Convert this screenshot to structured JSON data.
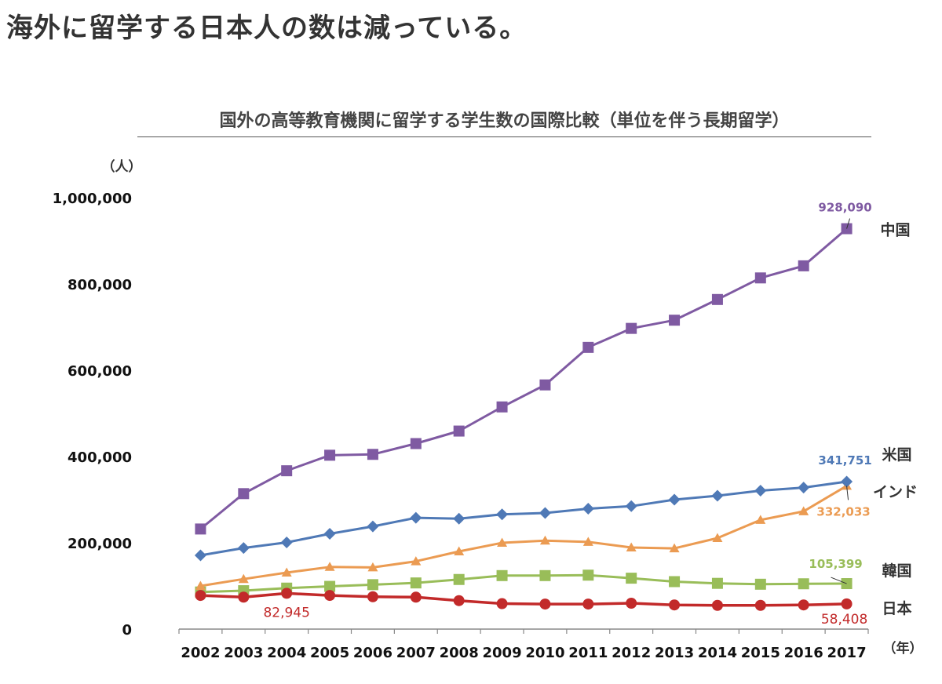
{
  "headline": "海外に留学する日本人の数は減っている。",
  "chart_data": {
    "type": "line",
    "title": "国外の高等教育機関に留学する学生数の国際比較（単位を伴う長期留学）",
    "ylabel": "（人）",
    "xlabel": "（年）",
    "ylim": [
      0,
      1000000
    ],
    "yticks": [
      0,
      200000,
      400000,
      600000,
      800000,
      1000000
    ],
    "ytick_labels": [
      "0",
      "200,000",
      "400,000",
      "600,000",
      "800,000",
      "1,000,000"
    ],
    "categories": [
      "2002",
      "2003",
      "2004",
      "2005",
      "2006",
      "2007",
      "2008",
      "2009",
      "2010",
      "2011",
      "2012",
      "2013",
      "2014",
      "2015",
      "2016",
      "2017"
    ],
    "series": [
      {
        "name": "中国",
        "color": "#7f5aa2",
        "marker": "square",
        "values": [
          232000,
          314000,
          367000,
          403000,
          405000,
          430000,
          459000,
          515000,
          566000,
          653000,
          697000,
          716000,
          764000,
          814000,
          842000,
          928090
        ]
      },
      {
        "name": "米国",
        "color": "#4f79b6",
        "marker": "diamond",
        "values": [
          171000,
          188000,
          201000,
          221000,
          238000,
          258000,
          256000,
          266000,
          269000,
          279000,
          285000,
          300000,
          309000,
          321000,
          328000,
          341751
        ]
      },
      {
        "name": "インド",
        "color": "#eb9b52",
        "marker": "triangle",
        "values": [
          100000,
          116000,
          131000,
          144000,
          143000,
          157000,
          180000,
          200000,
          205000,
          202000,
          189000,
          187000,
          211000,
          253000,
          273000,
          332033
        ]
      },
      {
        "name": "韓国",
        "color": "#99bd59",
        "marker": "square",
        "values": [
          86000,
          89000,
          95000,
          99000,
          103000,
          107000,
          115000,
          124000,
          124000,
          125000,
          118000,
          110000,
          106000,
          104000,
          105000,
          105399
        ]
      },
      {
        "name": "日本",
        "color": "#c22a2a",
        "marker": "circle",
        "values": [
          78000,
          74000,
          82945,
          78000,
          75000,
          74000,
          66000,
          59000,
          58000,
          58000,
          60000,
          56000,
          55000,
          55000,
          56000,
          58408
        ]
      }
    ],
    "annotations": [
      {
        "text": "928,090",
        "series": "中国",
        "color": "#7f5aa2"
      },
      {
        "text": "341,751",
        "series": "米国",
        "color": "#4f79b6"
      },
      {
        "text": "332,033",
        "series": "インド",
        "color": "#eb9b52"
      },
      {
        "text": "105,399",
        "series": "韓国",
        "color": "#99bd59"
      },
      {
        "text": "58,408",
        "series": "日本",
        "color": "#c22a2a"
      },
      {
        "text": "82,945",
        "series": "日本",
        "color": "#c22a2a"
      }
    ]
  }
}
